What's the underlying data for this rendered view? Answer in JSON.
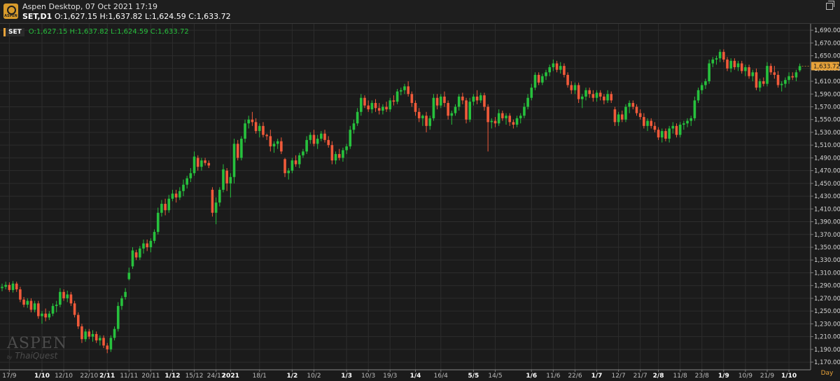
{
  "window": {
    "title": "Aspen Desktop, 07 Oct 2021 17:19",
    "symbol_line": "SET,D1",
    "ohlc_line": "O:1,627.15 H:1,637.82 L:1,624.59 C:1,633.72",
    "logo_text": "ASPEN"
  },
  "legend": {
    "symbol": "SET",
    "ohlc": "O:1,627.15 H:1,637.82 L:1,624.59 C:1,633.72"
  },
  "watermark": {
    "name": "ASPEN",
    "by": "by",
    "brand": "ThaiQuest"
  },
  "period": "Day",
  "colors": {
    "up": "#27c13d",
    "down": "#f05a3a",
    "doji": "#e8a33a",
    "last": "#e8a33a",
    "grid": "#2d2d2d"
  },
  "chart_data": {
    "type": "candlestick",
    "ylim": [
      1158,
      1700
    ],
    "yticks": [
      "1,690.00",
      "1,670.00",
      "1,650.00",
      "1,630.00",
      "1,610.00",
      "1,590.00",
      "1,570.00",
      "1,550.00",
      "1,530.00",
      "1,510.00",
      "1,490.00",
      "1,470.00",
      "1,450.00",
      "1,430.00",
      "1,410.00",
      "1,390.00",
      "1,370.00",
      "1,350.00",
      "1,330.00",
      "1,310.00",
      "1,290.00",
      "1,270.00",
      "1,250.00",
      "1,230.00",
      "1,210.00",
      "1,190.00",
      "1,170.00"
    ],
    "last_value": "1,633.72",
    "xticks": [
      {
        "label": "17/9",
        "i": 2,
        "bold": false
      },
      {
        "label": "1/10",
        "i": 11,
        "bold": true
      },
      {
        "label": "12/10",
        "i": 17,
        "bold": false
      },
      {
        "label": "22/10",
        "i": 24,
        "bold": false
      },
      {
        "label": "2/11",
        "i": 29,
        "bold": true
      },
      {
        "label": "11/11",
        "i": 35,
        "bold": false
      },
      {
        "label": "20/11",
        "i": 41,
        "bold": false
      },
      {
        "label": "1/12",
        "i": 47,
        "bold": true
      },
      {
        "label": "15/12",
        "i": 53,
        "bold": false
      },
      {
        "label": "24/12",
        "i": 59,
        "bold": false
      },
      {
        "label": "2021",
        "i": 63,
        "bold": true
      },
      {
        "label": "18/1",
        "i": 71,
        "bold": false
      },
      {
        "label": "1/2",
        "i": 80,
        "bold": true
      },
      {
        "label": "10/2",
        "i": 86,
        "bold": false
      },
      {
        "label": "1/3",
        "i": 95,
        "bold": true
      },
      {
        "label": "10/3",
        "i": 101,
        "bold": false
      },
      {
        "label": "19/3",
        "i": 107,
        "bold": false
      },
      {
        "label": "1/4",
        "i": 114,
        "bold": true
      },
      {
        "label": "16/4",
        "i": 121,
        "bold": false
      },
      {
        "label": "5/5",
        "i": 130,
        "bold": true
      },
      {
        "label": "14/5",
        "i": 136,
        "bold": false
      },
      {
        "label": "1/6",
        "i": 146,
        "bold": true
      },
      {
        "label": "11/6",
        "i": 152,
        "bold": false
      },
      {
        "label": "22/6",
        "i": 158,
        "bold": false
      },
      {
        "label": "1/7",
        "i": 164,
        "bold": true
      },
      {
        "label": "12/7",
        "i": 170,
        "bold": false
      },
      {
        "label": "21/7",
        "i": 176,
        "bold": false
      },
      {
        "label": "2/8",
        "i": 181,
        "bold": true
      },
      {
        "label": "11/8",
        "i": 187,
        "bold": false
      },
      {
        "label": "23/8",
        "i": 193,
        "bold": false
      },
      {
        "label": "1/9",
        "i": 199,
        "bold": true
      },
      {
        "label": "10/9",
        "i": 205,
        "bold": false
      },
      {
        "label": "21/9",
        "i": 211,
        "bold": false
      },
      {
        "label": "1/10",
        "i": 217,
        "bold": true
      }
    ],
    "candles": [
      [
        1286,
        1293,
        1281,
        1288
      ],
      [
        1288,
        1296,
        1284,
        1291
      ],
      [
        1291,
        1295,
        1280,
        1283
      ],
      [
        1283,
        1297,
        1279,
        1293
      ],
      [
        1293,
        1296,
        1280,
        1284
      ],
      [
        1284,
        1288,
        1264,
        1268
      ],
      [
        1268,
        1272,
        1256,
        1260
      ],
      [
        1260,
        1270,
        1255,
        1266
      ],
      [
        1266,
        1270,
        1248,
        1252
      ],
      [
        1252,
        1266,
        1248,
        1262
      ],
      [
        1262,
        1266,
        1238,
        1242
      ],
      [
        1242,
        1250,
        1230,
        1246
      ],
      [
        1246,
        1254,
        1234,
        1240
      ],
      [
        1240,
        1250,
        1236,
        1246
      ],
      [
        1246,
        1262,
        1242,
        1258
      ],
      [
        1258,
        1266,
        1248,
        1260
      ],
      [
        1260,
        1286,
        1256,
        1280
      ],
      [
        1280,
        1284,
        1266,
        1270
      ],
      [
        1270,
        1282,
        1264,
        1276
      ],
      [
        1276,
        1280,
        1258,
        1262
      ],
      [
        1262,
        1266,
        1240,
        1244
      ],
      [
        1244,
        1248,
        1222,
        1226
      ],
      [
        1226,
        1230,
        1200,
        1206
      ],
      [
        1206,
        1222,
        1202,
        1218
      ],
      [
        1218,
        1222,
        1206,
        1210
      ],
      [
        1210,
        1220,
        1202,
        1214
      ],
      [
        1214,
        1218,
        1200,
        1204
      ],
      [
        1204,
        1212,
        1196,
        1208
      ],
      [
        1208,
        1212,
        1192,
        1196
      ],
      [
        1196,
        1200,
        1184,
        1190
      ],
      [
        1190,
        1212,
        1186,
        1208
      ],
      [
        1208,
        1226,
        1204,
        1222
      ],
      [
        1222,
        1264,
        1218,
        1258
      ],
      [
        1258,
        1274,
        1252,
        1270
      ],
      [
        1272,
        1286,
        1268,
        1280
      ],
      [
        1300,
        1318,
        1298,
        1310
      ],
      [
        1320,
        1350,
        1316,
        1345
      ],
      [
        1342,
        1346,
        1330,
        1334
      ],
      [
        1334,
        1352,
        1330,
        1348
      ],
      [
        1348,
        1362,
        1340,
        1356
      ],
      [
        1356,
        1362,
        1344,
        1350
      ],
      [
        1350,
        1364,
        1342,
        1360
      ],
      [
        1360,
        1378,
        1356,
        1374
      ],
      [
        1374,
        1412,
        1370,
        1404
      ],
      [
        1404,
        1424,
        1398,
        1418
      ],
      [
        1418,
        1426,
        1400,
        1408
      ],
      [
        1408,
        1432,
        1404,
        1426
      ],
      [
        1426,
        1440,
        1422,
        1434
      ],
      [
        1434,
        1440,
        1420,
        1428
      ],
      [
        1428,
        1444,
        1424,
        1438
      ],
      [
        1438,
        1456,
        1430,
        1448
      ],
      [
        1448,
        1462,
        1442,
        1458
      ],
      [
        1458,
        1474,
        1452,
        1466
      ],
      [
        1466,
        1500,
        1462,
        1492
      ],
      [
        1490,
        1494,
        1470,
        1476
      ],
      [
        1476,
        1490,
        1470,
        1486
      ],
      [
        1486,
        1490,
        1478,
        1482
      ],
      [
        1482,
        1486,
        1474,
        1478
      ],
      [
        1440,
        1444,
        1398,
        1404
      ],
      [
        1404,
        1428,
        1386,
        1420
      ],
      [
        1420,
        1444,
        1414,
        1440
      ],
      [
        1440,
        1480,
        1436,
        1472
      ],
      [
        1470,
        1474,
        1438,
        1450
      ],
      [
        1450,
        1466,
        1428,
        1460
      ],
      [
        1460,
        1520,
        1450,
        1512
      ],
      [
        1512,
        1518,
        1486,
        1490
      ],
      [
        1490,
        1524,
        1486,
        1520
      ],
      [
        1520,
        1550,
        1514,
        1544
      ],
      [
        1544,
        1556,
        1536,
        1550
      ],
      [
        1550,
        1562,
        1540,
        1546
      ],
      [
        1546,
        1552,
        1528,
        1532
      ],
      [
        1532,
        1544,
        1522,
        1540
      ],
      [
        1540,
        1546,
        1522,
        1526
      ],
      [
        1526,
        1528,
        1518,
        1524
      ],
      [
        1524,
        1534,
        1500,
        1508
      ],
      [
        1508,
        1516,
        1498,
        1512
      ],
      [
        1512,
        1520,
        1504,
        1516
      ],
      [
        1516,
        1522,
        1496,
        1500
      ],
      [
        1488,
        1490,
        1460,
        1466
      ],
      [
        1466,
        1474,
        1456,
        1470
      ],
      [
        1470,
        1490,
        1466,
        1486
      ],
      [
        1486,
        1494,
        1476,
        1480
      ],
      [
        1480,
        1498,
        1474,
        1494
      ],
      [
        1494,
        1504,
        1490,
        1500
      ],
      [
        1500,
        1524,
        1496,
        1518
      ],
      [
        1518,
        1530,
        1512,
        1526
      ],
      [
        1526,
        1534,
        1508,
        1512
      ],
      [
        1512,
        1526,
        1504,
        1520
      ],
      [
        1520,
        1532,
        1516,
        1528
      ],
      [
        1528,
        1534,
        1514,
        1518
      ],
      [
        1518,
        1524,
        1506,
        1510
      ],
      [
        1510,
        1516,
        1480,
        1486
      ],
      [
        1486,
        1500,
        1480,
        1496
      ],
      [
        1496,
        1504,
        1486,
        1490
      ],
      [
        1490,
        1506,
        1484,
        1502
      ],
      [
        1502,
        1512,
        1496,
        1508
      ],
      [
        1508,
        1540,
        1504,
        1534
      ],
      [
        1534,
        1550,
        1528,
        1544
      ],
      [
        1544,
        1568,
        1540,
        1562
      ],
      [
        1562,
        1590,
        1556,
        1584
      ],
      [
        1584,
        1588,
        1568,
        1572
      ],
      [
        1572,
        1580,
        1562,
        1566
      ],
      [
        1566,
        1580,
        1560,
        1576
      ],
      [
        1576,
        1582,
        1562,
        1568
      ],
      [
        1568,
        1576,
        1558,
        1564
      ],
      [
        1564,
        1574,
        1558,
        1570
      ],
      [
        1570,
        1578,
        1562,
        1566
      ],
      [
        1566,
        1584,
        1562,
        1580
      ],
      [
        1580,
        1588,
        1572,
        1578
      ],
      [
        1578,
        1598,
        1574,
        1594
      ],
      [
        1594,
        1600,
        1588,
        1596
      ],
      [
        1596,
        1606,
        1590,
        1602
      ],
      [
        1602,
        1610,
        1586,
        1590
      ],
      [
        1590,
        1594,
        1570,
        1576
      ],
      [
        1576,
        1580,
        1556,
        1562
      ],
      [
        1562,
        1568,
        1546,
        1552
      ],
      [
        1552,
        1558,
        1540,
        1556
      ],
      [
        1556,
        1562,
        1530,
        1540
      ],
      [
        1540,
        1556,
        1534,
        1552
      ],
      [
        1552,
        1590,
        1548,
        1584
      ],
      [
        1584,
        1590,
        1566,
        1572
      ],
      [
        1572,
        1590,
        1568,
        1586
      ],
      [
        1586,
        1594,
        1570,
        1576
      ],
      [
        1576,
        1580,
        1550,
        1556
      ],
      [
        1556,
        1564,
        1542,
        1560
      ],
      [
        1560,
        1574,
        1556,
        1570
      ],
      [
        1570,
        1590,
        1564,
        1586
      ],
      [
        1586,
        1592,
        1574,
        1580
      ],
      [
        1580,
        1584,
        1544,
        1550
      ],
      [
        1550,
        1584,
        1546,
        1578
      ],
      [
        1578,
        1590,
        1572,
        1586
      ],
      [
        1586,
        1596,
        1574,
        1580
      ],
      [
        1580,
        1592,
        1576,
        1588
      ],
      [
        1588,
        1592,
        1564,
        1570
      ],
      [
        1570,
        1574,
        1500,
        1546
      ],
      [
        1546,
        1552,
        1536,
        1548
      ],
      [
        1548,
        1554,
        1538,
        1544
      ],
      [
        1544,
        1566,
        1540,
        1560
      ],
      [
        1560,
        1564,
        1548,
        1552
      ],
      [
        1552,
        1560,
        1542,
        1556
      ],
      [
        1556,
        1560,
        1540,
        1546
      ],
      [
        1546,
        1550,
        1536,
        1542
      ],
      [
        1542,
        1556,
        1538,
        1552
      ],
      [
        1552,
        1560,
        1544,
        1556
      ],
      [
        1556,
        1576,
        1552,
        1570
      ],
      [
        1570,
        1590,
        1566,
        1584
      ],
      [
        1584,
        1606,
        1580,
        1600
      ],
      [
        1600,
        1624,
        1596,
        1620
      ],
      [
        1620,
        1624,
        1604,
        1608
      ],
      [
        1608,
        1622,
        1604,
        1618
      ],
      [
        1618,
        1628,
        1612,
        1624
      ],
      [
        1624,
        1636,
        1618,
        1632
      ],
      [
        1632,
        1644,
        1626,
        1638
      ],
      [
        1638,
        1642,
        1624,
        1628
      ],
      [
        1628,
        1640,
        1622,
        1634
      ],
      [
        1634,
        1638,
        1616,
        1620
      ],
      [
        1620,
        1624,
        1600,
        1604
      ],
      [
        1604,
        1610,
        1590,
        1596
      ],
      [
        1596,
        1608,
        1590,
        1604
      ],
      [
        1604,
        1608,
        1576,
        1582
      ],
      [
        1582,
        1590,
        1568,
        1586
      ],
      [
        1586,
        1600,
        1580,
        1596
      ],
      [
        1596,
        1600,
        1584,
        1590
      ],
      [
        1590,
        1596,
        1578,
        1584
      ],
      [
        1584,
        1596,
        1578,
        1592
      ],
      [
        1592,
        1596,
        1580,
        1586
      ],
      [
        1586,
        1590,
        1574,
        1580
      ],
      [
        1580,
        1596,
        1576,
        1590
      ],
      [
        1590,
        1594,
        1576,
        1580
      ],
      [
        1566,
        1570,
        1540,
        1546
      ],
      [
        1546,
        1562,
        1540,
        1558
      ],
      [
        1558,
        1564,
        1546,
        1550
      ],
      [
        1550,
        1574,
        1546,
        1570
      ],
      [
        1570,
        1580,
        1560,
        1576
      ],
      [
        1576,
        1580,
        1566,
        1570
      ],
      [
        1570,
        1574,
        1556,
        1560
      ],
      [
        1560,
        1566,
        1550,
        1554
      ],
      [
        1554,
        1560,
        1536,
        1540
      ],
      [
        1540,
        1552,
        1532,
        1548
      ],
      [
        1548,
        1552,
        1536,
        1540
      ],
      [
        1540,
        1546,
        1530,
        1534
      ],
      [
        1534,
        1538,
        1518,
        1522
      ],
      [
        1522,
        1536,
        1514,
        1532
      ],
      [
        1532,
        1536,
        1516,
        1520
      ],
      [
        1520,
        1540,
        1514,
        1536
      ],
      [
        1536,
        1546,
        1528,
        1540
      ],
      [
        1540,
        1544,
        1522,
        1526
      ],
      [
        1526,
        1546,
        1522,
        1542
      ],
      [
        1542,
        1548,
        1534,
        1544
      ],
      [
        1544,
        1552,
        1538,
        1548
      ],
      [
        1548,
        1556,
        1540,
        1552
      ],
      [
        1552,
        1586,
        1548,
        1580
      ],
      [
        1580,
        1600,
        1576,
        1596
      ],
      [
        1596,
        1608,
        1590,
        1604
      ],
      [
        1604,
        1614,
        1598,
        1610
      ],
      [
        1610,
        1644,
        1606,
        1638
      ],
      [
        1638,
        1648,
        1632,
        1644
      ],
      [
        1644,
        1650,
        1636,
        1646
      ],
      [
        1646,
        1660,
        1640,
        1656
      ],
      [
        1656,
        1660,
        1640,
        1644
      ],
      [
        1644,
        1648,
        1626,
        1630
      ],
      [
        1630,
        1646,
        1624,
        1642
      ],
      [
        1642,
        1646,
        1628,
        1632
      ],
      [
        1632,
        1642,
        1626,
        1638
      ],
      [
        1638,
        1642,
        1622,
        1626
      ],
      [
        1626,
        1636,
        1618,
        1632
      ],
      [
        1632,
        1636,
        1614,
        1618
      ],
      [
        1618,
        1628,
        1610,
        1624
      ],
      [
        1624,
        1630,
        1596,
        1600
      ],
      [
        1600,
        1614,
        1594,
        1610
      ],
      [
        1610,
        1616,
        1602,
        1606
      ],
      [
        1606,
        1640,
        1602,
        1634
      ],
      [
        1634,
        1638,
        1620,
        1624
      ],
      [
        1624,
        1634,
        1614,
        1620
      ],
      [
        1620,
        1626,
        1600,
        1604
      ],
      [
        1604,
        1610,
        1594,
        1606
      ],
      [
        1606,
        1616,
        1600,
        1612
      ],
      [
        1612,
        1624,
        1606,
        1618
      ],
      [
        1618,
        1624,
        1612,
        1616
      ],
      [
        1616,
        1628,
        1610,
        1624
      ],
      [
        1627.15,
        1637.82,
        1624.59,
        1633.72
      ]
    ]
  }
}
